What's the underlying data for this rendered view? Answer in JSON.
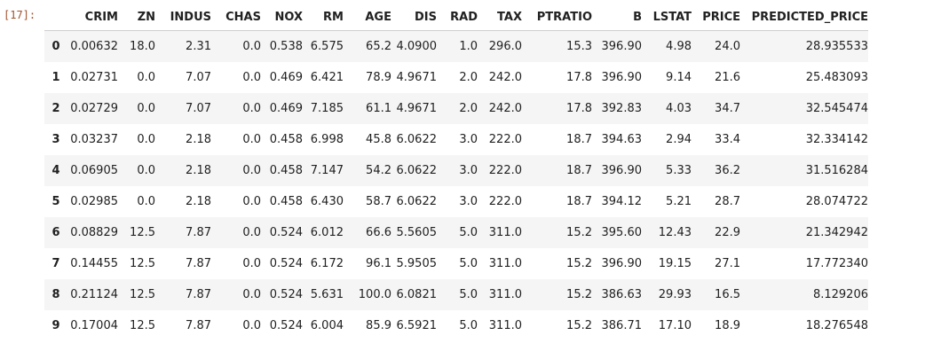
{
  "cell_prompt": "[17]:",
  "dataframe": {
    "columns": [
      "CRIM",
      "ZN",
      "INDUS",
      "CHAS",
      "NOX",
      "RM",
      "AGE",
      "DIS",
      "RAD",
      "TAX",
      "PTRATIO",
      "B",
      "LSTAT",
      "PRICE",
      "PREDICTED_PRICE"
    ],
    "index": [
      "0",
      "1",
      "2",
      "3",
      "4",
      "5",
      "6",
      "7",
      "8",
      "9"
    ],
    "rows": [
      [
        "0.00632",
        "18.0",
        "2.31",
        "0.0",
        "0.538",
        "6.575",
        "65.2",
        "4.0900",
        "1.0",
        "296.0",
        "15.3",
        "396.90",
        "4.98",
        "24.0",
        "28.935533"
      ],
      [
        "0.02731",
        "0.0",
        "7.07",
        "0.0",
        "0.469",
        "6.421",
        "78.9",
        "4.9671",
        "2.0",
        "242.0",
        "17.8",
        "396.90",
        "9.14",
        "21.6",
        "25.483093"
      ],
      [
        "0.02729",
        "0.0",
        "7.07",
        "0.0",
        "0.469",
        "7.185",
        "61.1",
        "4.9671",
        "2.0",
        "242.0",
        "17.8",
        "392.83",
        "4.03",
        "34.7",
        "32.545474"
      ],
      [
        "0.03237",
        "0.0",
        "2.18",
        "0.0",
        "0.458",
        "6.998",
        "45.8",
        "6.0622",
        "3.0",
        "222.0",
        "18.7",
        "394.63",
        "2.94",
        "33.4",
        "32.334142"
      ],
      [
        "0.06905",
        "0.0",
        "2.18",
        "0.0",
        "0.458",
        "7.147",
        "54.2",
        "6.0622",
        "3.0",
        "222.0",
        "18.7",
        "396.90",
        "5.33",
        "36.2",
        "31.516284"
      ],
      [
        "0.02985",
        "0.0",
        "2.18",
        "0.0",
        "0.458",
        "6.430",
        "58.7",
        "6.0622",
        "3.0",
        "222.0",
        "18.7",
        "394.12",
        "5.21",
        "28.7",
        "28.074722"
      ],
      [
        "0.08829",
        "12.5",
        "7.87",
        "0.0",
        "0.524",
        "6.012",
        "66.6",
        "5.5605",
        "5.0",
        "311.0",
        "15.2",
        "395.60",
        "12.43",
        "22.9",
        "21.342942"
      ],
      [
        "0.14455",
        "12.5",
        "7.87",
        "0.0",
        "0.524",
        "6.172",
        "96.1",
        "5.9505",
        "5.0",
        "311.0",
        "15.2",
        "396.90",
        "19.15",
        "27.1",
        "17.772340"
      ],
      [
        "0.21124",
        "12.5",
        "7.87",
        "0.0",
        "0.524",
        "5.631",
        "100.0",
        "6.0821",
        "5.0",
        "311.0",
        "15.2",
        "386.63",
        "29.93",
        "16.5",
        "8.129206"
      ],
      [
        "0.17004",
        "12.5",
        "7.87",
        "0.0",
        "0.524",
        "6.004",
        "85.9",
        "6.5921",
        "5.0",
        "311.0",
        "15.2",
        "386.71",
        "17.10",
        "18.9",
        "18.276548"
      ]
    ]
  },
  "colors": {
    "prompt": "#a0522d",
    "stripe": "#f5f5f5",
    "header_rule": "#cfcfcf"
  }
}
